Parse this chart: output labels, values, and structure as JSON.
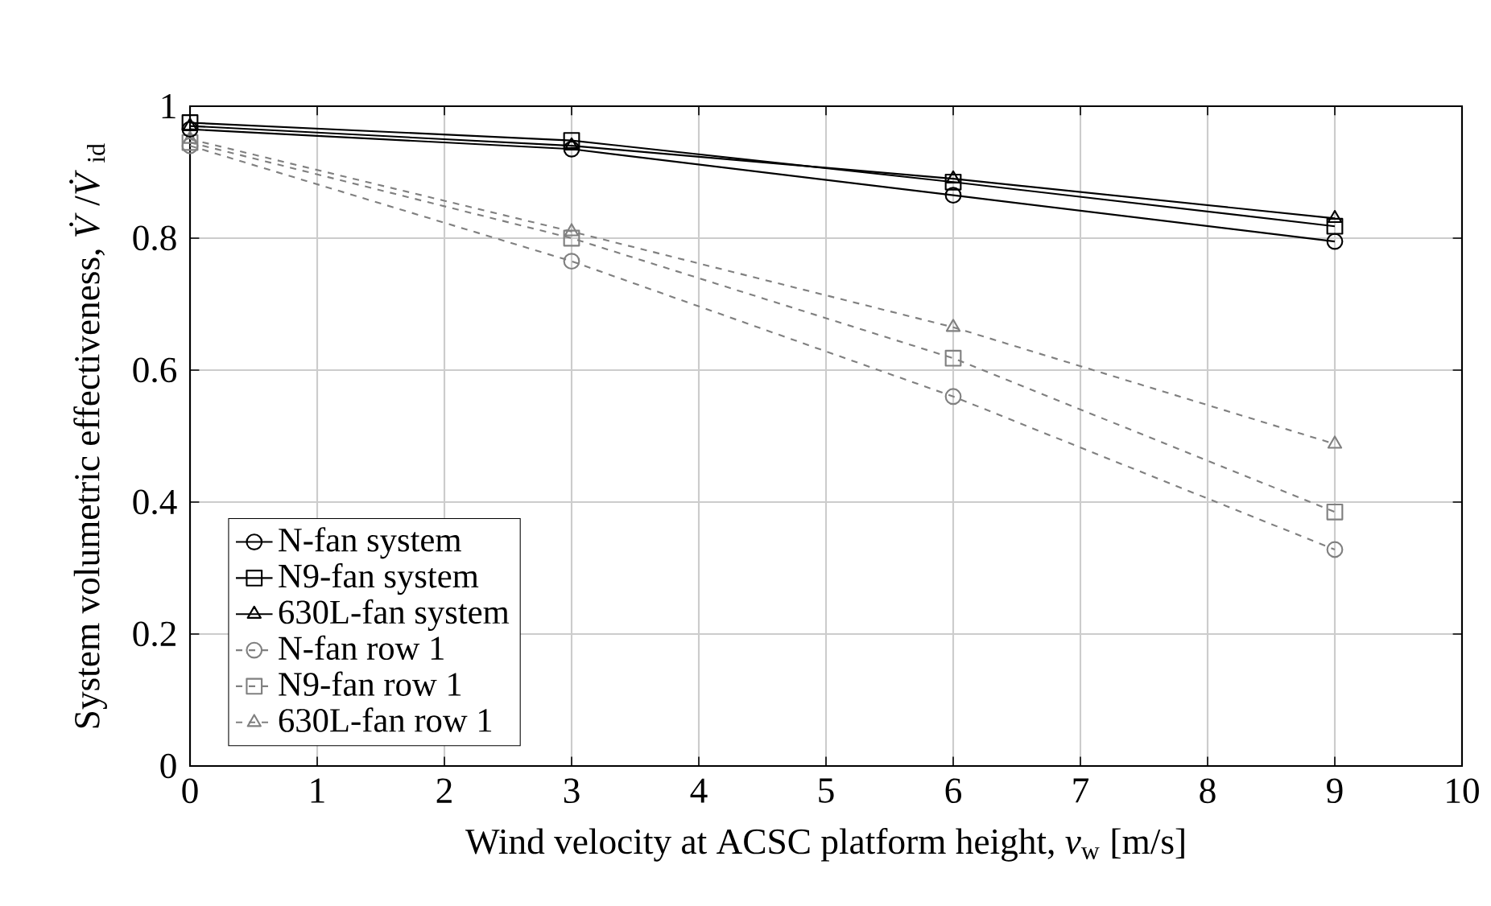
{
  "chart_data": {
    "type": "line",
    "xlabel": "Wind velocity at ACSC platform height, *v*$_{w}$ [m/s]",
    "ylabel": "System volumetric effectiveness, *V̇*/*V̇*$_{id}$",
    "x": [
      0,
      3,
      6,
      9
    ],
    "series": [
      {
        "name": "N-fan system",
        "color": "#000000",
        "marker": "circle",
        "line_style": "solid",
        "values": [
          0.965,
          0.935,
          0.865,
          0.795
        ]
      },
      {
        "name": "N9-fan system",
        "color": "#000000",
        "marker": "square",
        "line_style": "solid",
        "values": [
          0.975,
          0.948,
          0.885,
          0.818
        ]
      },
      {
        "name": "630L-fan system",
        "color": "#000000",
        "marker": "triangle",
        "line_style": "solid",
        "values": [
          0.97,
          0.94,
          0.89,
          0.83
        ]
      },
      {
        "name": "N-fan row 1",
        "color": "#808080",
        "marker": "circle",
        "line_style": "dashed",
        "values": [
          0.94,
          0.765,
          0.56,
          0.328
        ]
      },
      {
        "name": "N9-fan row 1",
        "color": "#808080",
        "marker": "square",
        "line_style": "dashed",
        "values": [
          0.945,
          0.8,
          0.618,
          0.385
        ]
      },
      {
        "name": "630L-fan row 1",
        "color": "#808080",
        "marker": "triangle",
        "line_style": "dashed",
        "values": [
          0.95,
          0.81,
          0.665,
          0.488
        ]
      }
    ],
    "xlim": [
      0,
      10
    ],
    "ylim": [
      0,
      1
    ],
    "xticks": [
      0,
      1,
      2,
      3,
      4,
      5,
      6,
      7,
      8,
      9,
      10
    ],
    "yticks": [
      0,
      0.2,
      0.4,
      0.6,
      0.8,
      1
    ],
    "grid": true,
    "legend": "bottom left"
  }
}
